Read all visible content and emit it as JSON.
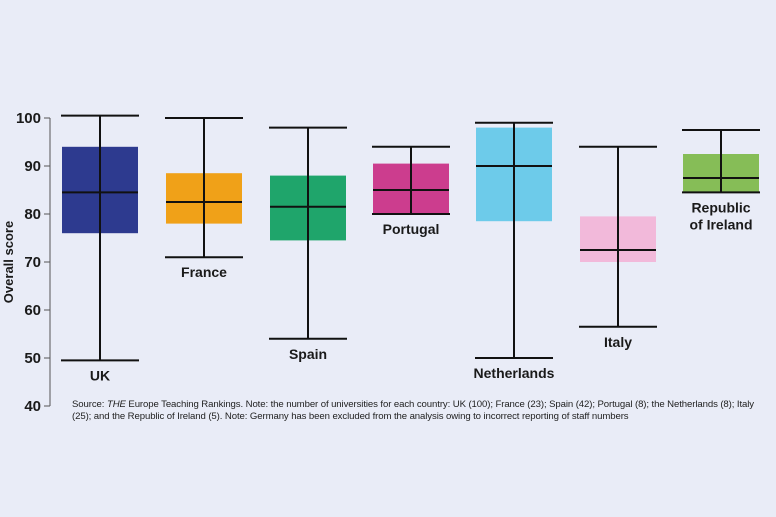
{
  "chart_data": {
    "type": "box",
    "ylabel": "Overall score",
    "ylim": [
      40,
      100
    ],
    "yticks": [
      40,
      50,
      60,
      70,
      80,
      90,
      100
    ],
    "grid": false,
    "series": [
      {
        "category": "UK",
        "label": "UK",
        "color": "#2d3a8f",
        "whisker_low": 49.5,
        "q1": 76,
        "median": 84.5,
        "q3": 94,
        "whisker_high": 100.5
      },
      {
        "category": "France",
        "label": "France",
        "color": "#f0a118",
        "whisker_low": 71,
        "q1": 78,
        "median": 82.5,
        "q3": 88.5,
        "whisker_high": 100
      },
      {
        "category": "Spain",
        "label": "Spain",
        "color": "#1fa56b",
        "whisker_low": 54,
        "q1": 74.5,
        "median": 81.5,
        "q3": 88,
        "whisker_high": 98
      },
      {
        "category": "Portugal",
        "label": "Portugal",
        "color": "#cc3d8e",
        "whisker_low": 80,
        "q1": 80,
        "median": 85,
        "q3": 90.5,
        "whisker_high": 94
      },
      {
        "category": "Netherlands",
        "label": "Netherlands",
        "color": "#6dcbea",
        "whisker_low": 50,
        "q1": 78.5,
        "median": 90,
        "q3": 98,
        "whisker_high": 99
      },
      {
        "category": "Italy",
        "label": "Italy",
        "color": "#f2b9da",
        "whisker_low": 56.5,
        "q1": 70,
        "median": 72.5,
        "q3": 79.5,
        "whisker_high": 94
      },
      {
        "category": "Republic of Ireland",
        "label_lines": [
          "Republic",
          "of Ireland"
        ],
        "color": "#86bd57",
        "whisker_low": 84.5,
        "q1": 84.5,
        "median": 87.5,
        "q3": 92.5,
        "whisker_high": 97.5
      }
    ],
    "source_note": {
      "prefix": "Source: ",
      "italic": "THE",
      "text": " Europe Teaching Rankings. Note: the number of universities for each country: UK (100); France (23); Spain (42); Portugal (8); the Netherlands (8); Italy (25); and the Republic of Ireland (5). Note: Germany has been excluded from the analysis owing to incorrect reporting of staff numbers"
    }
  }
}
